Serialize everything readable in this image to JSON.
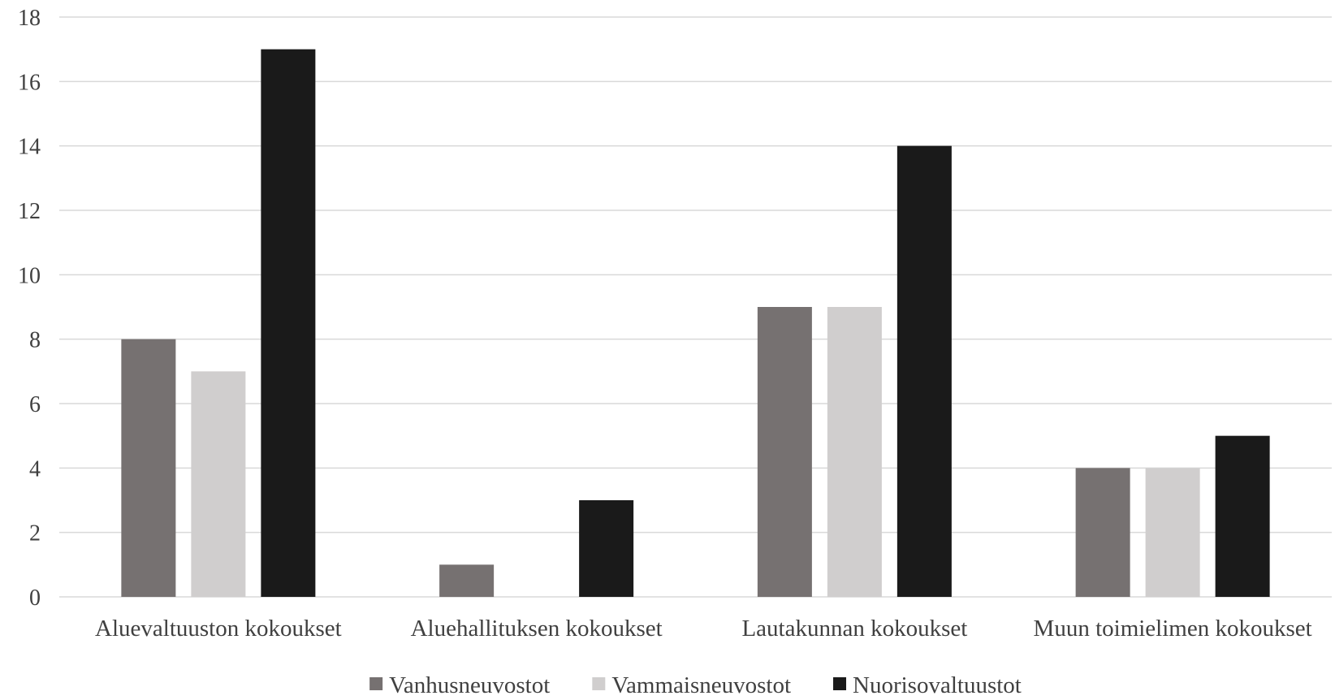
{
  "chart_data": {
    "type": "bar",
    "title": "",
    "xlabel": "",
    "ylabel": "",
    "ylim": [
      0,
      18
    ],
    "yticks": [
      0,
      2,
      4,
      6,
      8,
      10,
      12,
      14,
      16,
      18
    ],
    "grid": true,
    "legend_position": "bottom",
    "categories": [
      "Aluevaltuuston kokoukset",
      "Aluehallituksen kokoukset",
      "Lautakunnan kokoukset",
      "Muun toimielimen kokoukset"
    ],
    "series": [
      {
        "name": "Vanhusneuvostot",
        "color": "#767171",
        "values": [
          8,
          1,
          9,
          4
        ]
      },
      {
        "name": "Vammaisneuvostot",
        "color": "#d0cece",
        "values": [
          7,
          0,
          9,
          4
        ]
      },
      {
        "name": "Nuorisovaltuustot",
        "color": "#1a1a1a",
        "values": [
          17,
          3,
          14,
          5
        ]
      }
    ]
  }
}
